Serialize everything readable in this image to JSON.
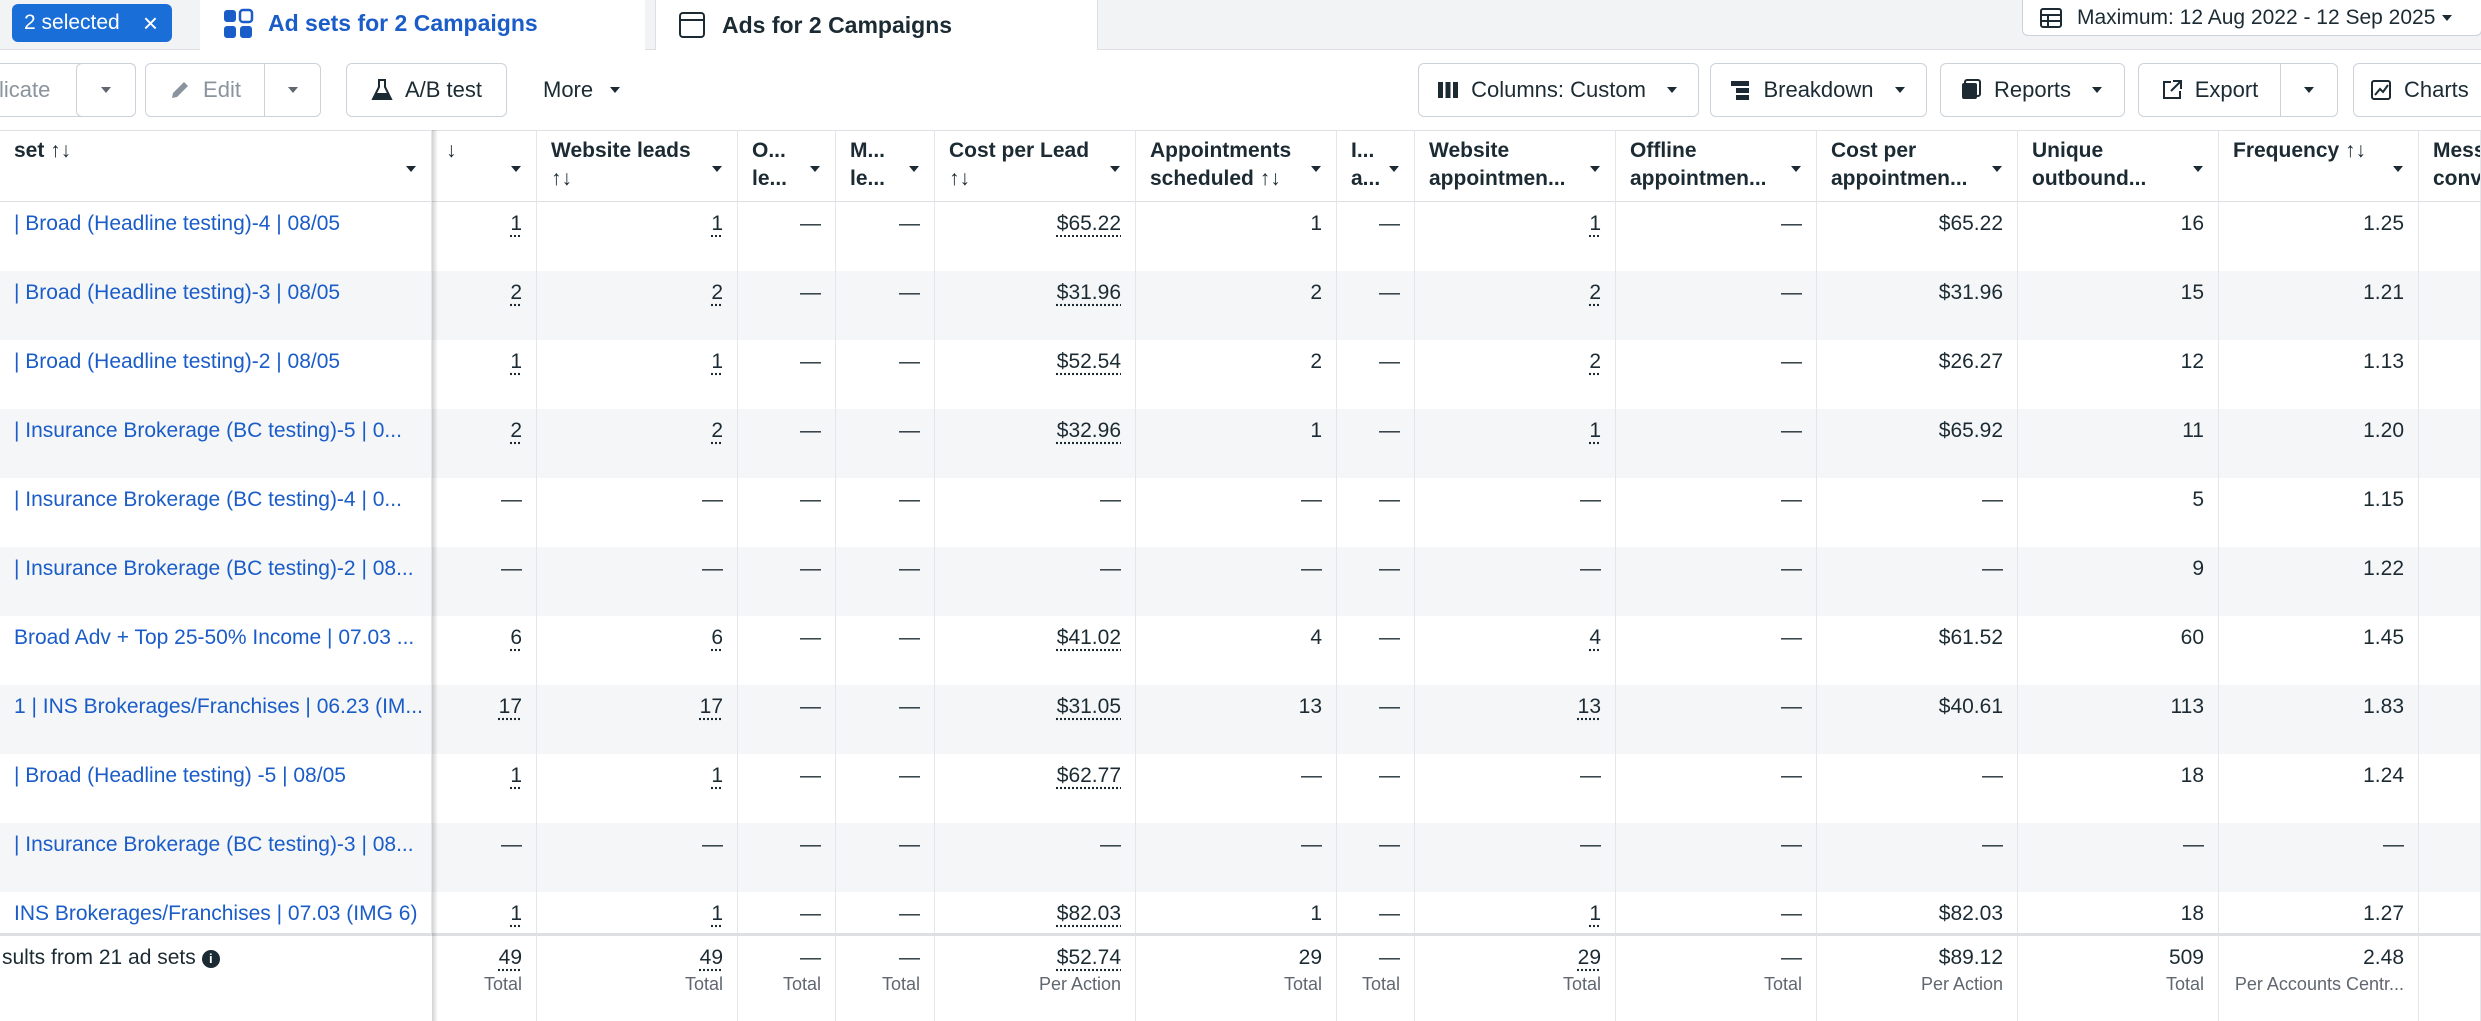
{
  "topbar": {
    "selected_label": "2 selected",
    "close_glyph": "×",
    "tab_adsets": "Ad sets for 2 Campaigns",
    "tab_ads": "Ads for 2 Campaigns",
    "date_range": "Maximum: 12 Aug 2022 - 12 Sep 2025"
  },
  "toolbar": {
    "duplicate": "licate",
    "edit": "Edit",
    "ab_test": "A/B test",
    "more": "More",
    "columns": "Columns: Custom",
    "breakdown": "Breakdown",
    "reports": "Reports",
    "export": "Export",
    "charts": "Charts"
  },
  "table": {
    "headers": {
      "name": "set ↑↓",
      "results": "↓",
      "website_leads": "Website leads\n↑↓",
      "offline_leads": "O...\nle...",
      "messaging_leads": "M...\nle...",
      "cost_per_lead": "Cost per Lead\n↑↓",
      "appointments": "Appointments\nscheduled ↑↓",
      "inapp_appointments": "I...\na...",
      "website_appointments": "Website\nappointmen...",
      "offline_appointments": "Offline\nappointmen...",
      "cost_per_appointment": "Cost per\nappointmen...",
      "unique_outbound": "Unique\noutbound...",
      "frequency": "Frequency ↑↓",
      "messaging": "Mess\nconv"
    },
    "rows": [
      {
        "name": "| Broad (Headline testing)-4 | 08/05",
        "results": "1",
        "website_leads": "1",
        "offline_leads": "—",
        "messaging_leads": "—",
        "cost_per_lead": "$65.22",
        "appointments": "1",
        "inapp": "—",
        "website_appts": "1",
        "offline_appts": "—",
        "cost_per_appt": "$65.22",
        "unique_outbound": "16",
        "frequency": "1.25"
      },
      {
        "name": "| Broad (Headline testing)-3 | 08/05",
        "results": "2",
        "website_leads": "2",
        "offline_leads": "—",
        "messaging_leads": "—",
        "cost_per_lead": "$31.96",
        "appointments": "2",
        "inapp": "—",
        "website_appts": "2",
        "offline_appts": "—",
        "cost_per_appt": "$31.96",
        "unique_outbound": "15",
        "frequency": "1.21"
      },
      {
        "name": "| Broad (Headline testing)-2 | 08/05",
        "results": "1",
        "website_leads": "1",
        "offline_leads": "—",
        "messaging_leads": "—",
        "cost_per_lead": "$52.54",
        "appointments": "2",
        "inapp": "—",
        "website_appts": "2",
        "offline_appts": "—",
        "cost_per_appt": "$26.27",
        "unique_outbound": "12",
        "frequency": "1.13"
      },
      {
        "name": "| Insurance Brokerage (BC testing)-5 | 0...",
        "results": "2",
        "website_leads": "2",
        "offline_leads": "—",
        "messaging_leads": "—",
        "cost_per_lead": "$32.96",
        "appointments": "1",
        "inapp": "—",
        "website_appts": "1",
        "offline_appts": "—",
        "cost_per_appt": "$65.92",
        "unique_outbound": "11",
        "frequency": "1.20"
      },
      {
        "name": "| Insurance Brokerage (BC testing)-4 | 0...",
        "results": "—",
        "website_leads": "—",
        "offline_leads": "—",
        "messaging_leads": "—",
        "cost_per_lead": "—",
        "appointments": "—",
        "inapp": "—",
        "website_appts": "—",
        "offline_appts": "—",
        "cost_per_appt": "—",
        "unique_outbound": "5",
        "frequency": "1.15"
      },
      {
        "name": "| Insurance Brokerage (BC testing)-2 | 08...",
        "results": "—",
        "website_leads": "—",
        "offline_leads": "—",
        "messaging_leads": "—",
        "cost_per_lead": "—",
        "appointments": "—",
        "inapp": "—",
        "website_appts": "—",
        "offline_appts": "—",
        "cost_per_appt": "—",
        "unique_outbound": "9",
        "frequency": "1.22"
      },
      {
        "name": "Broad Adv + Top 25-50% Income | 07.03 ...",
        "results": "6",
        "website_leads": "6",
        "offline_leads": "—",
        "messaging_leads": "—",
        "cost_per_lead": "$41.02",
        "appointments": "4",
        "inapp": "—",
        "website_appts": "4",
        "offline_appts": "—",
        "cost_per_appt": "$61.52",
        "unique_outbound": "60",
        "frequency": "1.45"
      },
      {
        "name": "1 | INS Brokerages/Franchises | 06.23 (IM...",
        "results": "17",
        "website_leads": "17",
        "offline_leads": "—",
        "messaging_leads": "—",
        "cost_per_lead": "$31.05",
        "appointments": "13",
        "inapp": "—",
        "website_appts": "13",
        "offline_appts": "—",
        "cost_per_appt": "$40.61",
        "unique_outbound": "113",
        "frequency": "1.83"
      },
      {
        "name": "| Broad (Headline testing) -5 | 08/05",
        "results": "1",
        "website_leads": "1",
        "offline_leads": "—",
        "messaging_leads": "—",
        "cost_per_lead": "$62.77",
        "appointments": "—",
        "inapp": "—",
        "website_appts": "—",
        "offline_appts": "—",
        "cost_per_appt": "—",
        "unique_outbound": "18",
        "frequency": "1.24"
      },
      {
        "name": "| Insurance Brokerage (BC testing)-3 | 08...",
        "results": "—",
        "website_leads": "—",
        "offline_leads": "—",
        "messaging_leads": "—",
        "cost_per_lead": "—",
        "appointments": "—",
        "inapp": "—",
        "website_appts": "—",
        "offline_appts": "—",
        "cost_per_appt": "—",
        "unique_outbound": "—",
        "frequency": "—"
      },
      {
        "name": "INS Brokerages/Franchises | 07.03 (IMG 6)",
        "results": "1",
        "website_leads": "1",
        "offline_leads": "—",
        "messaging_leads": "—",
        "cost_per_lead": "$82.03",
        "appointments": "1",
        "inapp": "—",
        "website_appts": "1",
        "offline_appts": "—",
        "cost_per_appt": "$82.03",
        "unique_outbound": "18",
        "frequency": "1.27"
      }
    ],
    "summary": {
      "label": "sults from 21 ad sets",
      "info": "i",
      "results": "49",
      "results_lbl": "Total",
      "website_leads": "49",
      "website_leads_lbl": "Total",
      "offline_leads": "—",
      "offline_leads_lbl": "Total",
      "messaging_leads": "—",
      "messaging_leads_lbl": "Total",
      "cost_per_lead": "$52.74",
      "cost_per_lead_lbl": "Per Action",
      "appointments": "29",
      "appointments_lbl": "Total",
      "inapp": "—",
      "inapp_lbl": "Total",
      "website_appts": "29",
      "website_appts_lbl": "Total",
      "offline_appts": "—",
      "offline_appts_lbl": "Total",
      "cost_per_appt": "$89.12",
      "cost_per_appt_lbl": "Per Action",
      "unique_outbound": "509",
      "unique_outbound_lbl": "Total",
      "frequency": "2.48",
      "frequency_lbl": "Per Accounts Centr..."
    }
  },
  "icons": {
    "adsets_tab": "grid-icon",
    "ads_tab": "ad-icon",
    "calendar": "calendar-table-icon",
    "edit": "pencil-icon",
    "ab_test": "flask-icon",
    "columns": "columns-icon",
    "breakdown": "breakdown-icon",
    "reports": "reports-icon",
    "export": "export-icon",
    "charts": "chart-icon"
  },
  "colors": {
    "accent": "#1a6ed8",
    "link": "#1a5cc8",
    "text": "#1c2b33",
    "alt_row": "#f5f6f7"
  }
}
